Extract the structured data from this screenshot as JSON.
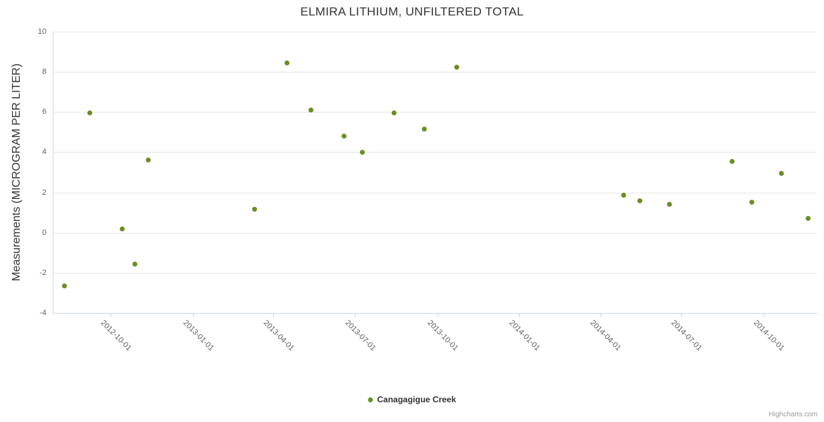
{
  "title": "ELMIRA LITHIUM, UNFILTERED TOTAL",
  "watermark": "Highcharts.com",
  "legend": {
    "items": [
      {
        "label": "Canagagigue Creek"
      }
    ]
  },
  "colors": {
    "marker": "#6b8e23",
    "grid": "#e6e6e6",
    "axis_line": "#ccd6eb",
    "tick_text": "#606060",
    "title_text": "#333333"
  },
  "chart_data": {
    "type": "scatter",
    "title": "ELMIRA LITHIUM, UNFILTERED TOTAL",
    "xlabel": "",
    "ylabel": "Measurements (MICROGRAM PER LITER)",
    "ylim": [
      -4,
      10
    ],
    "y_ticks": [
      10,
      8,
      6,
      4,
      2,
      0,
      -2,
      -4
    ],
    "x_ticks": [
      "2012-10-01",
      "2013-01-01",
      "2013-04-01",
      "2013-07-01",
      "2013-10-01",
      "2014-01-01",
      "2014-04-01",
      "2014-07-01",
      "2014-10-01"
    ],
    "x_range": [
      "2012-07-28",
      "2014-11-30"
    ],
    "grid": true,
    "legend_position": "bottom",
    "series": [
      {
        "name": "Canagagigue Creek",
        "color": "#6b8e23",
        "points": [
          {
            "x": "2012-08-10",
            "y": -2.65
          },
          {
            "x": "2012-09-07",
            "y": 5.95
          },
          {
            "x": "2012-10-14",
            "y": 0.2
          },
          {
            "x": "2012-10-28",
            "y": -1.55
          },
          {
            "x": "2012-11-12",
            "y": 3.6
          },
          {
            "x": "2013-03-11",
            "y": 1.15
          },
          {
            "x": "2013-04-16",
            "y": 8.45
          },
          {
            "x": "2013-05-13",
            "y": 6.1
          },
          {
            "x": "2013-06-19",
            "y": 4.8
          },
          {
            "x": "2013-07-09",
            "y": 4.0
          },
          {
            "x": "2013-08-14",
            "y": 5.95
          },
          {
            "x": "2013-09-17",
            "y": 5.15
          },
          {
            "x": "2013-10-23",
            "y": 8.25
          },
          {
            "x": "2014-04-28",
            "y": 1.85
          },
          {
            "x": "2014-05-16",
            "y": 1.6
          },
          {
            "x": "2014-06-18",
            "y": 1.4
          },
          {
            "x": "2014-08-27",
            "y": 3.55
          },
          {
            "x": "2014-09-18",
            "y": 1.5
          },
          {
            "x": "2014-10-21",
            "y": 2.95
          },
          {
            "x": "2014-11-20",
            "y": 0.7
          }
        ]
      }
    ]
  }
}
